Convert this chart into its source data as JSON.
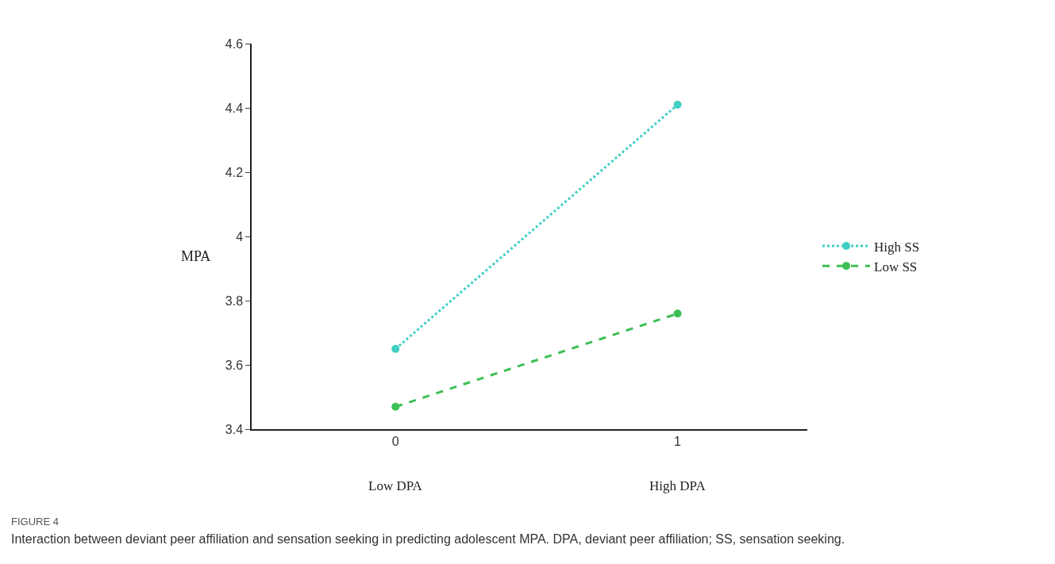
{
  "chart_data": {
    "type": "line",
    "x": [
      0,
      1
    ],
    "series": [
      {
        "name": "High SS",
        "color": "#3fcfc4",
        "values": [
          3.65,
          4.41
        ],
        "line_style": "dotted"
      },
      {
        "name": "Low SS",
        "color": "#3dbf55",
        "values": [
          3.47,
          3.76
        ],
        "line_style": "dashed"
      }
    ],
    "ylabel": "MPA",
    "xlim": [
      -0.51,
      1.46
    ],
    "xticks": [
      0,
      1
    ],
    "ylim": [
      3.4,
      4.6
    ],
    "yticks": [
      3.4,
      3.6,
      3.8,
      4,
      4.2,
      4.4,
      4.6
    ],
    "marker": "circle",
    "legend": "right",
    "annotations": [
      "Low DPA",
      "High DPA",
      "FIGURE 4",
      "Interaction between deviant peer affiliation and sensation seeking in predicting adolescent MPA. DPA, deviant peer affiliation; SS, sensation seeking."
    ]
  }
}
